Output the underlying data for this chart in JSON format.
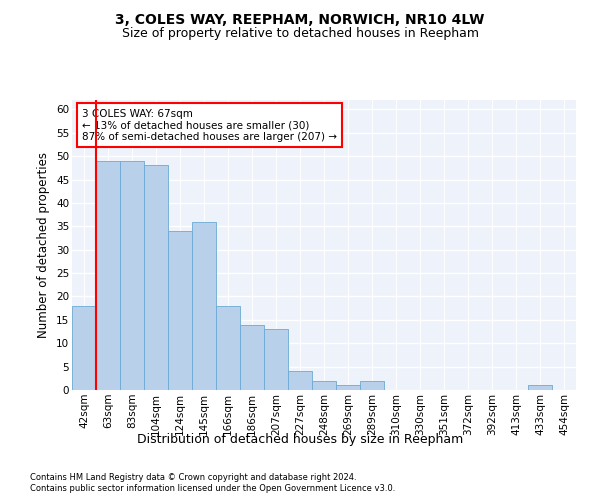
{
  "title1": "3, COLES WAY, REEPHAM, NORWICH, NR10 4LW",
  "title2": "Size of property relative to detached houses in Reepham",
  "xlabel": "Distribution of detached houses by size in Reepham",
  "ylabel": "Number of detached properties",
  "categories": [
    "42sqm",
    "63sqm",
    "83sqm",
    "104sqm",
    "124sqm",
    "145sqm",
    "166sqm",
    "186sqm",
    "207sqm",
    "227sqm",
    "248sqm",
    "269sqm",
    "289sqm",
    "310sqm",
    "330sqm",
    "351sqm",
    "372sqm",
    "392sqm",
    "413sqm",
    "433sqm",
    "454sqm"
  ],
  "bar_values": [
    18,
    49,
    49,
    48,
    34,
    36,
    18,
    14,
    13,
    4,
    2,
    1,
    2,
    0,
    0,
    0,
    0,
    0,
    0,
    1,
    0
  ],
  "bar_color": "#b8d0ea",
  "bar_edge_color": "#6aaad4",
  "reference_line_x": 1,
  "reference_line_color": "red",
  "annotation_text": "3 COLES WAY: 67sqm\n← 13% of detached houses are smaller (30)\n87% of semi-detached houses are larger (207) →",
  "ylim": [
    0,
    62
  ],
  "yticks": [
    0,
    5,
    10,
    15,
    20,
    25,
    30,
    35,
    40,
    45,
    50,
    55,
    60
  ],
  "footer1": "Contains HM Land Registry data © Crown copyright and database right 2024.",
  "footer2": "Contains public sector information licensed under the Open Government Licence v3.0.",
  "bg_color": "#edf2fb",
  "grid_color": "white",
  "title1_fontsize": 10,
  "title2_fontsize": 9,
  "tick_fontsize": 7.5,
  "ylabel_fontsize": 8.5,
  "xlabel_fontsize": 9,
  "footer_fontsize": 6
}
